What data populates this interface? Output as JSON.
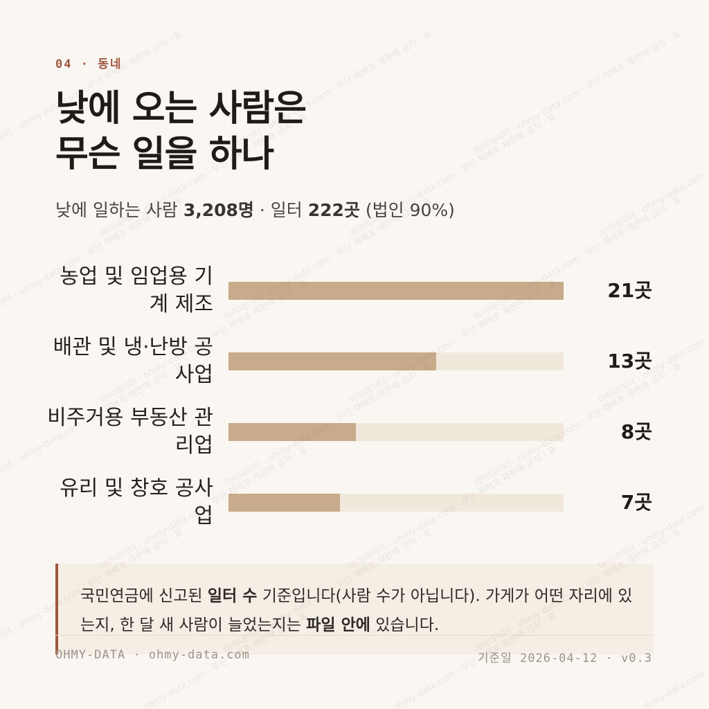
{
  "kicker": "04 · 동네",
  "title_lines": [
    "낮에 오는 사람은",
    "무슨 일을 하나"
  ],
  "subtitle": [
    "낮에 일하는 사람",
    "3,208명",
    "·",
    "일터",
    "222곳",
    "(법인 90%)"
  ],
  "chart_data": {
    "type": "bar",
    "orientation": "horizontal",
    "categories": [
      "농업 및 임업용 기계 제조",
      "배관 및 냉·난방 공사업",
      "비주거용 부동산 관리업",
      "유리 및 창호 공사업"
    ],
    "values": [
      21,
      13,
      8,
      7
    ],
    "value_labels": [
      "21곳",
      "13곳",
      "8곳",
      "7곳"
    ],
    "color": "#c8ab8a",
    "track_color": "#f1e8dc",
    "xlim": [
      0,
      21
    ]
  },
  "note": [
    "국민연금에 신고된",
    "일터 수",
    "기준입니다(사람 수가 아닙니다). 가게가 어떤 자리에 있는지, 한 달 새 사람이 늘었는지는",
    "파일 안에",
    "있습니다."
  ],
  "footer": {
    "left": "OHMY-DATA · ohmy-data.com",
    "right": "기준일 2026-04-12 · v0.3"
  },
  "watermark": "아이데이터 · ohmy-data.com · 무단 재배포·재판매 금지 · 표"
}
